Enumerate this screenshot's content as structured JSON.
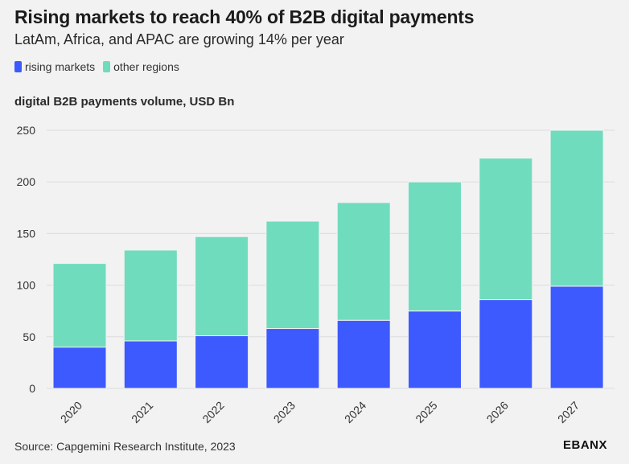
{
  "header": {
    "title": "Rising markets to reach 40% of B2B digital payments",
    "subtitle": "LatAm, Africa, and APAC are growing 14% per year"
  },
  "legend": {
    "items": [
      {
        "label": "rising markets",
        "color": "#3d5afe"
      },
      {
        "label": "other regions",
        "color": "#6fdcbd"
      }
    ]
  },
  "footer": {
    "source": "Source: Capgemini Research Institute, 2023",
    "logo": "EBANX"
  },
  "chart_data": {
    "type": "bar",
    "stacked": true,
    "ylabel": "digital B2B payments volume, USD Bn",
    "categories": [
      "2020",
      "2021",
      "2022",
      "2023",
      "2024",
      "2025",
      "2026",
      "2027"
    ],
    "series": [
      {
        "name": "rising markets",
        "color": "#3d5afe",
        "values": [
          40,
          46,
          51,
          58,
          66,
          75,
          86,
          99
        ]
      },
      {
        "name": "other regions",
        "color": "#6fdcbd",
        "values": [
          81,
          88,
          96,
          104,
          114,
          125,
          137,
          151
        ]
      }
    ],
    "yticks": [
      0,
      50,
      100,
      150,
      200,
      250
    ],
    "ylim": [
      0,
      250
    ],
    "grid": true
  }
}
